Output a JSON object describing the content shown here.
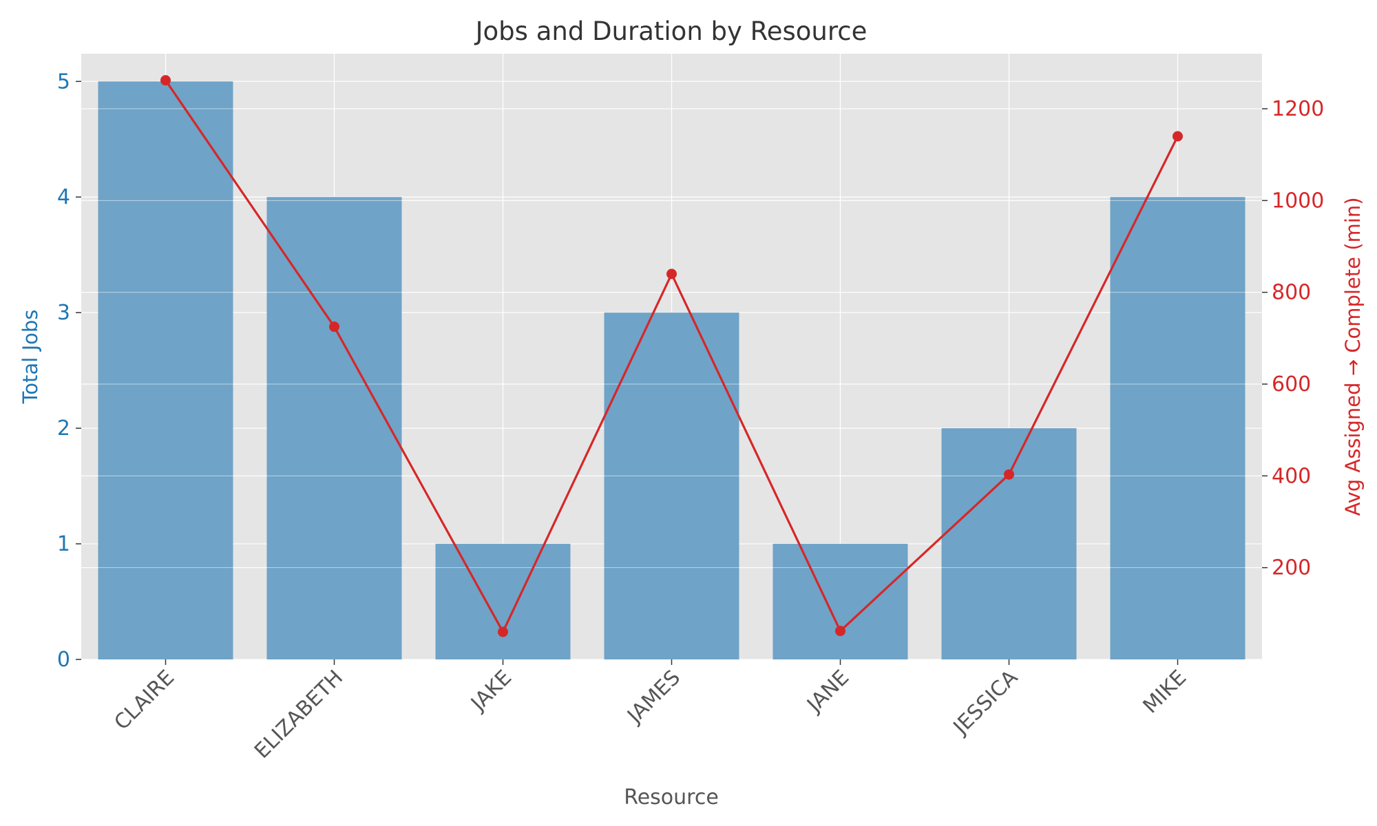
{
  "chart_data": {
    "type": "bar",
    "title": "Jobs and Duration by Resource",
    "xlabel": "Resource",
    "ylabel": "Total Jobs",
    "ylabel_right": "Avg Assigned → Complete (min)",
    "categories": [
      "CLAIRE",
      "ELIZABETH",
      "JAKE",
      "JAMES",
      "JANE",
      "JESSICA",
      "MIKE"
    ],
    "series": [
      {
        "type": "bar",
        "axis": "left",
        "values": [
          5,
          4,
          1,
          3,
          1,
          2,
          4
        ]
      },
      {
        "type": "line",
        "axis": "right",
        "values": [
          1262,
          725,
          60,
          840,
          62,
          403,
          1140
        ]
      }
    ],
    "ylim": [
      0,
      5.24
    ],
    "ylim_right": [
      0,
      1320
    ],
    "yticks_left": [
      0,
      1,
      2,
      3,
      4,
      5
    ],
    "yticks_right": [
      200,
      400,
      600,
      800,
      1000,
      1200
    ],
    "grid": true,
    "colors": {
      "bar": "#6fa3c8",
      "line": "#d62728",
      "left_axis": "#1f77b4",
      "right_axis": "#d62728",
      "background": "#e5e5e5"
    }
  }
}
